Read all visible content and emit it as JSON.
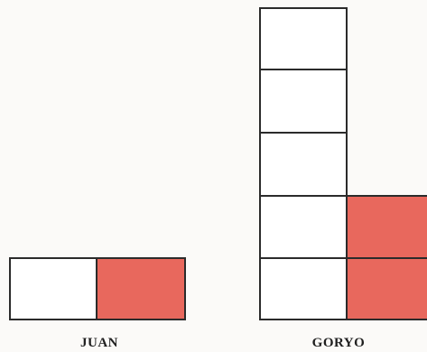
{
  "colors": {
    "filled": "#e8685d",
    "empty": "#ffffff",
    "border": "#2b2b2b",
    "background": "#fbfaf8"
  },
  "figures": [
    {
      "name": "juan",
      "label": "JUAN",
      "columns": [
        {
          "cells": [
            "empty"
          ]
        },
        {
          "cells": [
            "filled"
          ]
        }
      ]
    },
    {
      "name": "goryo",
      "label": "GORYO",
      "columns": [
        {
          "cells": [
            "empty",
            "empty",
            "empty",
            "empty",
            "empty"
          ]
        },
        {
          "cells": [
            "filled",
            "filled"
          ]
        }
      ]
    }
  ]
}
